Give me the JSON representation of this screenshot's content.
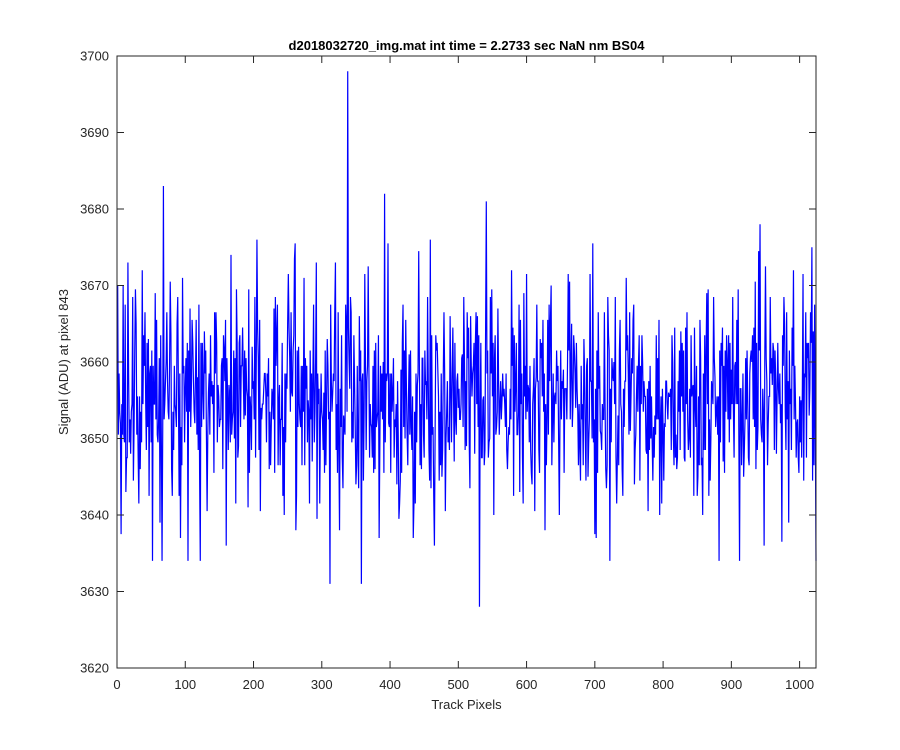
{
  "chart_data": {
    "type": "line",
    "title": "d2018032720_img.mat int time = 2.2733 sec  NaN nm BS04",
    "xlabel": "Track Pixels",
    "ylabel": "Signal (ADU) at pixel 843",
    "xlim": [
      0,
      1024
    ],
    "ylim": [
      3620,
      3700
    ],
    "xticks": [
      0,
      100,
      200,
      300,
      400,
      500,
      600,
      700,
      800,
      900,
      1000
    ],
    "yticks": [
      3620,
      3630,
      3640,
      3650,
      3660,
      3670,
      3680,
      3690,
      3700
    ],
    "grid": false,
    "box": true,
    "series": [
      {
        "color": "#0000ff",
        "summary": {
          "n_points": 1024,
          "approx_mean": 3655.5,
          "approx_std": 7
        },
        "points": [
          [
            1,
            3670
          ],
          [
            5,
            3652
          ],
          [
            9,
            3670
          ],
          [
            13,
            3643
          ],
          [
            16,
            3673
          ],
          [
            20,
            3648
          ],
          [
            28,
            3665
          ],
          [
            34,
            3646
          ],
          [
            37,
            3672
          ],
          [
            42,
            3655
          ],
          [
            46,
            3663
          ],
          [
            52,
            3634
          ],
          [
            56,
            3669
          ],
          [
            63,
            3639
          ],
          [
            66,
            3634
          ],
          [
            68,
            3683
          ],
          [
            72,
            3660
          ],
          [
            80,
            3646
          ],
          [
            88,
            3665
          ],
          [
            93,
            3637
          ],
          [
            96,
            3671
          ],
          [
            104,
            3634
          ],
          [
            107,
            3667
          ],
          [
            114,
            3652
          ],
          [
            118,
            3658
          ],
          [
            122,
            3634
          ],
          [
            128,
            3664
          ],
          [
            134,
            3656
          ],
          [
            141,
            3657
          ],
          [
            148,
            3657
          ],
          [
            155,
            3646
          ],
          [
            160,
            3636
          ],
          [
            164,
            3657
          ],
          [
            167,
            3674
          ],
          [
            172,
            3650
          ],
          [
            178,
            3649
          ],
          [
            188,
            3653
          ],
          [
            192,
            3641
          ],
          [
            198,
            3662
          ],
          [
            205,
            3676
          ],
          [
            211,
            3654
          ],
          [
            218,
            3656
          ],
          [
            223,
            3646
          ],
          [
            230,
            3667
          ],
          [
            238,
            3657
          ],
          [
            245,
            3640
          ],
          [
            250,
            3665
          ],
          [
            256,
            3656
          ],
          [
            262,
            3638
          ],
          [
            266,
            3662
          ],
          [
            274,
            3671
          ],
          [
            280,
            3655
          ],
          [
            286,
            3647
          ],
          [
            292,
            3673
          ],
          [
            298,
            3652
          ],
          [
            303,
            3656
          ],
          [
            308,
            3663
          ],
          [
            312,
            3631
          ],
          [
            316,
            3656
          ],
          [
            320,
            3673
          ],
          [
            326,
            3638
          ],
          [
            332,
            3653
          ],
          [
            338,
            3698
          ],
          [
            340,
            3660
          ],
          [
            346,
            3650
          ],
          [
            350,
            3644
          ],
          [
            355,
            3666
          ],
          [
            358,
            3631
          ],
          [
            364,
            3660
          ],
          [
            372,
            3652
          ],
          [
            378,
            3646
          ],
          [
            384,
            3637
          ],
          [
            390,
            3660
          ],
          [
            392,
            3682
          ],
          [
            398,
            3652
          ],
          [
            404,
            3656
          ],
          [
            410,
            3644
          ],
          [
            416,
            3659
          ],
          [
            422,
            3650
          ],
          [
            428,
            3661
          ],
          [
            434,
            3637
          ],
          [
            440,
            3657
          ],
          [
            446,
            3646
          ],
          [
            452,
            3657
          ],
          [
            459,
            3676
          ],
          [
            465,
            3636
          ],
          [
            470,
            3659
          ],
          [
            476,
            3645
          ],
          [
            482,
            3650
          ],
          [
            488,
            3666
          ],
          [
            494,
            3647
          ],
          [
            500,
            3654
          ],
          [
            506,
            3661
          ],
          [
            512,
            3649
          ],
          [
            518,
            3666
          ],
          [
            524,
            3648
          ],
          [
            528,
            3666
          ],
          [
            531,
            3628
          ],
          [
            536,
            3655
          ],
          [
            541,
            3681
          ],
          [
            546,
            3650
          ],
          [
            552,
            3640
          ],
          [
            558,
            3667
          ],
          [
            564,
            3655
          ],
          [
            572,
            3646
          ],
          [
            578,
            3672
          ],
          [
            584,
            3657
          ],
          [
            590,
            3643
          ],
          [
            596,
            3669
          ],
          [
            602,
            3657
          ],
          [
            608,
            3644
          ],
          [
            614,
            3658
          ],
          [
            620,
            3663
          ],
          [
            627,
            3638
          ],
          [
            630,
            3653
          ],
          [
            636,
            3670
          ],
          [
            642,
            3656
          ],
          [
            648,
            3640
          ],
          [
            654,
            3659
          ],
          [
            660,
            3660
          ],
          [
            666,
            3665
          ],
          [
            672,
            3654
          ],
          [
            678,
            3649
          ],
          [
            684,
            3663
          ],
          [
            690,
            3645
          ],
          [
            696,
            3650
          ],
          [
            702,
            3637
          ],
          [
            708,
            3651
          ],
          [
            716,
            3646
          ],
          [
            722,
            3634
          ],
          [
            728,
            3660
          ],
          [
            734,
            3653
          ],
          [
            740,
            3646
          ],
          [
            746,
            3671
          ],
          [
            752,
            3651
          ],
          [
            758,
            3644
          ],
          [
            764,
            3660
          ],
          [
            770,
            3660
          ],
          [
            776,
            3648
          ],
          [
            782,
            3650
          ],
          [
            788,
            3653
          ],
          [
            795,
            3640
          ],
          [
            802,
            3652
          ],
          [
            808,
            3656
          ],
          [
            814,
            3660
          ],
          [
            820,
            3646
          ],
          [
            826,
            3664
          ],
          [
            832,
            3647
          ],
          [
            838,
            3650
          ],
          [
            844,
            3657
          ],
          [
            851,
            3645
          ],
          [
            858,
            3640
          ],
          [
            864,
            3669
          ],
          [
            870,
            3650
          ],
          [
            876,
            3658
          ],
          [
            882,
            3634
          ],
          [
            888,
            3647
          ],
          [
            894,
            3660
          ],
          [
            900,
            3659
          ],
          [
            906,
            3660
          ],
          [
            912,
            3634
          ],
          [
            918,
            3645
          ],
          [
            924,
            3655
          ],
          [
            930,
            3660
          ],
          [
            936,
            3646
          ],
          [
            942,
            3678
          ],
          [
            948,
            3636
          ],
          [
            954,
            3652
          ],
          [
            960,
            3657
          ],
          [
            966,
            3648
          ],
          [
            972,
            3652
          ],
          [
            978,
            3665
          ],
          [
            984,
            3639
          ],
          [
            991,
            3672
          ],
          [
            996,
            3652
          ],
          [
            1002,
            3655
          ],
          [
            1008,
            3658
          ],
          [
            1014,
            3653
          ],
          [
            1018,
            3675
          ],
          [
            1020,
            3664
          ]
        ]
      }
    ]
  }
}
